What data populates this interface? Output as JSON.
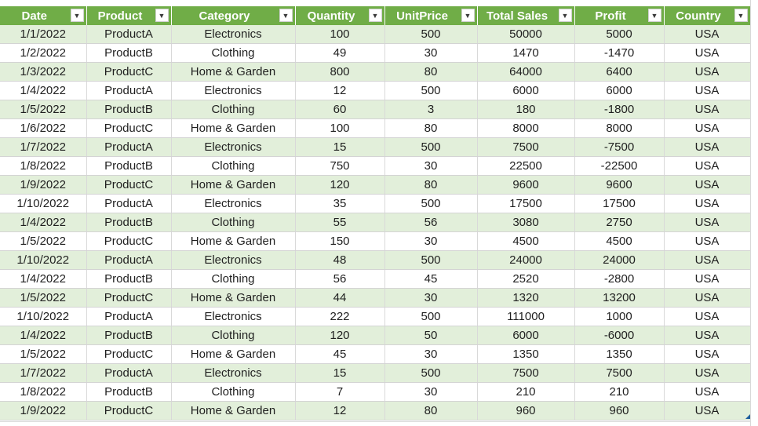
{
  "colors": {
    "header_bg": "#70ad47",
    "band_bg": "#e2efda",
    "text": "#1f1f1f"
  },
  "filter_icon": "filter-dropdown-icon",
  "columns": [
    "Date",
    "Product",
    "Category",
    "Quantity",
    "UnitPrice",
    "Total Sales",
    "Profit",
    "Country"
  ],
  "rows": [
    [
      "1/1/2022",
      "ProductA",
      "Electronics",
      "100",
      "500",
      "50000",
      "5000",
      "USA"
    ],
    [
      "1/2/2022",
      "ProductB",
      "Clothing",
      "49",
      "30",
      "1470",
      "-1470",
      "USA"
    ],
    [
      "1/3/2022",
      "ProductC",
      "Home & Garden",
      "800",
      "80",
      "64000",
      "6400",
      "USA"
    ],
    [
      "1/4/2022",
      "ProductA",
      "Electronics",
      "12",
      "500",
      "6000",
      "6000",
      "USA"
    ],
    [
      "1/5/2022",
      "ProductB",
      "Clothing",
      "60",
      "3",
      "180",
      "-1800",
      "USA"
    ],
    [
      "1/6/2022",
      "ProductC",
      "Home & Garden",
      "100",
      "80",
      "8000",
      "8000",
      "USA"
    ],
    [
      "1/7/2022",
      "ProductA",
      "Electronics",
      "15",
      "500",
      "7500",
      "-7500",
      "USA"
    ],
    [
      "1/8/2022",
      "ProductB",
      "Clothing",
      "750",
      "30",
      "22500",
      "-22500",
      "USA"
    ],
    [
      "1/9/2022",
      "ProductC",
      "Home & Garden",
      "120",
      "80",
      "9600",
      "9600",
      "USA"
    ],
    [
      "1/10/2022",
      "ProductA",
      "Electronics",
      "35",
      "500",
      "17500",
      "17500",
      "USA"
    ],
    [
      "1/4/2022",
      "ProductB",
      "Clothing",
      "55",
      "56",
      "3080",
      "2750",
      "USA"
    ],
    [
      "1/5/2022",
      "ProductC",
      "Home & Garden",
      "150",
      "30",
      "4500",
      "4500",
      "USA"
    ],
    [
      "1/10/2022",
      "ProductA",
      "Electronics",
      "48",
      "500",
      "24000",
      "24000",
      "USA"
    ],
    [
      "1/4/2022",
      "ProductB",
      "Clothing",
      "56",
      "45",
      "2520",
      "-2800",
      "USA"
    ],
    [
      "1/5/2022",
      "ProductC",
      "Home & Garden",
      "44",
      "30",
      "1320",
      "13200",
      "USA"
    ],
    [
      "1/10/2022",
      "ProductA",
      "Electronics",
      "222",
      "500",
      "111000",
      "1000",
      "USA"
    ],
    [
      "1/4/2022",
      "ProductB",
      "Clothing",
      "120",
      "50",
      "6000",
      "-6000",
      "USA"
    ],
    [
      "1/5/2022",
      "ProductC",
      "Home & Garden",
      "45",
      "30",
      "1350",
      "1350",
      "USA"
    ],
    [
      "1/7/2022",
      "ProductA",
      "Electronics",
      "15",
      "500",
      "7500",
      "7500",
      "USA"
    ],
    [
      "1/8/2022",
      "ProductB",
      "Clothing",
      "7",
      "30",
      "210",
      "210",
      "USA"
    ],
    [
      "1/9/2022",
      "ProductC",
      "Home & Garden",
      "12",
      "80",
      "960",
      "960",
      "USA"
    ]
  ]
}
